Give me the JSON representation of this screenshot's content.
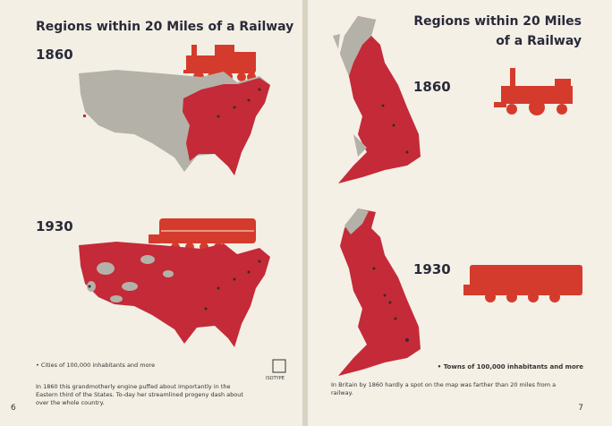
{
  "left_page": {
    "title": "Regions within 20 Miles of a Railway",
    "year_1": "1860",
    "year_2": "1930",
    "legend": "• Cities of 100,000 inhabitants and more",
    "logo": "ISOTYPE",
    "caption_lines": [
      "In 1860 this grandmotherly engine puffed about importantly in the",
      "Eastern third of the States. To-day her streamlined progeny dash about",
      "over the whole country."
    ],
    "page_number": "6"
  },
  "right_page": {
    "title_lines": [
      "Regions within 20 Miles",
      "of a Railway"
    ],
    "year_1": "1860",
    "year_2": "1930",
    "legend": "• Towns of 100,000 inhabitants and more",
    "caption_lines": [
      "In Britain by 1860 hardly a spot on the map was farther than 20 miles from a",
      "railway."
    ],
    "page_number": "7"
  }
}
